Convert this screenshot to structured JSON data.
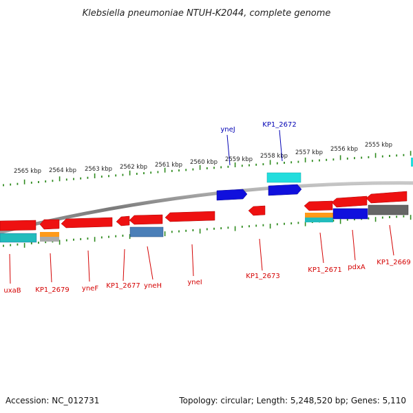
{
  "title": "Klebsiella pneumoniae NTUH-K2044, complete genome",
  "footer": {
    "accession": "Accession: NC_012731",
    "summary": "Topology: circular; Length: 5,248,520 bp; Genes: 5,110"
  },
  "colors": {
    "background": "#ffffff",
    "backbone": "#8a8a8a",
    "tick": "#2e8b1e",
    "label_reverse": "#d40000",
    "label_forward": "#0000b4",
    "gene_red": "#ee1111",
    "gene_blue": "#1010dd",
    "gene_cyan": "#22dddd",
    "gene_steel": "#4b7fb8",
    "gene_orange": "#ff9a1a",
    "gene_gray": "#aaaaaa",
    "gene_dark": "#666666"
  },
  "scale": {
    "unit": "kbp",
    "labels": [
      "2565 kbp",
      "2564 kbp",
      "2563 kbp",
      "2562 kbp",
      "2561 kbp",
      "2560 kbp",
      "2559 kbp",
      "2558 kbp",
      "2557 kbp",
      "2556 kbp",
      "2555 kbp"
    ]
  },
  "gene_labels": [
    {
      "text": "yneJ",
      "strand": "forward"
    },
    {
      "text": "KP1_2672",
      "strand": "forward"
    },
    {
      "text": "uxaB",
      "strand": "reverse"
    },
    {
      "text": "KP1_2679",
      "strand": "reverse"
    },
    {
      "text": "yneF",
      "strand": "reverse"
    },
    {
      "text": "KP1_2677",
      "strand": "reverse"
    },
    {
      "text": "yneH",
      "strand": "reverse"
    },
    {
      "text": "yneI",
      "strand": "reverse"
    },
    {
      "text": "KP1_2673",
      "strand": "reverse"
    },
    {
      "text": "KP1_2671",
      "strand": "reverse"
    },
    {
      "text": "pdxA",
      "strand": "reverse"
    },
    {
      "text": "KP1_2669",
      "strand": "reverse"
    }
  ]
}
